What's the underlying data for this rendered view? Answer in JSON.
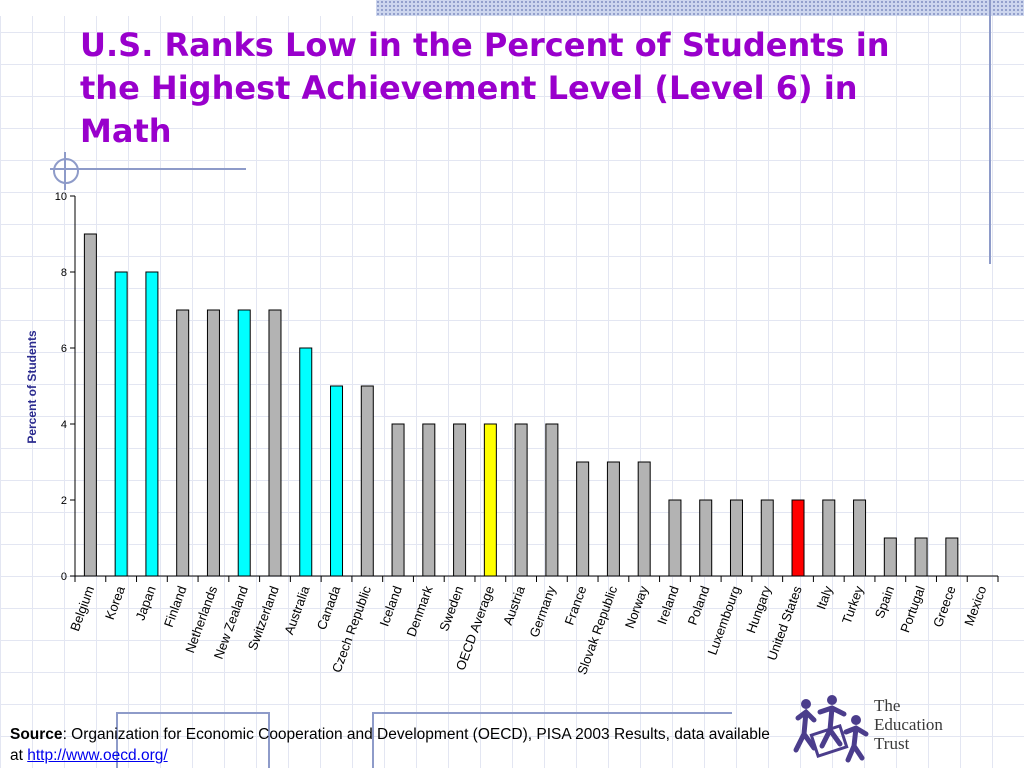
{
  "title": "U.S. Ranks Low in the Percent of Students in the Highest Achievement Level (Level 6) in Math",
  "colors": {
    "title": "#9900cc",
    "bar_gray": "#b3b3b3",
    "bar_cyan": "#00ffff",
    "bar_yellow": "#ffff00",
    "bar_red": "#ff0000",
    "axis_label": "#2b2b8f",
    "link": "#0000ee"
  },
  "chart_data": {
    "type": "bar",
    "title": "",
    "xlabel": "",
    "ylabel": "Percent of Students",
    "ylim": [
      0,
      10
    ],
    "yticks": [
      0,
      2,
      4,
      6,
      8,
      10
    ],
    "grid": false,
    "categories": [
      "Belgium",
      "Korea",
      "Japan",
      "Finland",
      "Netherlands",
      "New Zealand",
      "Switzerland",
      "Australia",
      "Canada",
      "Czech Republic",
      "Iceland",
      "Denmark",
      "Sweden",
      "OECD Average",
      "Austria",
      "Germany",
      "France",
      "Slovak Republic",
      "Norway",
      "Ireland",
      "Poland",
      "Luxembourg",
      "Hungary",
      "United States",
      "Italy",
      "Turkey",
      "Spain",
      "Portugal",
      "Greece",
      "Mexico"
    ],
    "values": [
      9,
      8,
      8,
      7,
      7,
      7,
      7,
      6,
      5,
      5,
      4,
      4,
      4,
      4,
      4,
      4,
      3,
      3,
      3,
      2,
      2,
      2,
      2,
      2,
      2,
      2,
      1,
      1,
      1,
      0
    ],
    "bar_colors": [
      "gray",
      "cyan",
      "cyan",
      "gray",
      "gray",
      "cyan",
      "gray",
      "cyan",
      "cyan",
      "gray",
      "gray",
      "gray",
      "gray",
      "yellow",
      "gray",
      "gray",
      "gray",
      "gray",
      "gray",
      "gray",
      "gray",
      "gray",
      "gray",
      "red",
      "gray",
      "gray",
      "gray",
      "gray",
      "gray",
      "gray"
    ]
  },
  "source": {
    "label": "Source",
    "text": ": Organization for Economic Cooperation and Development (OECD), PISA 2003 Results, data available at ",
    "link": "http://www.oecd.org/"
  },
  "logo": {
    "line1": "The",
    "line2": "Education",
    "line3": "Trust"
  }
}
